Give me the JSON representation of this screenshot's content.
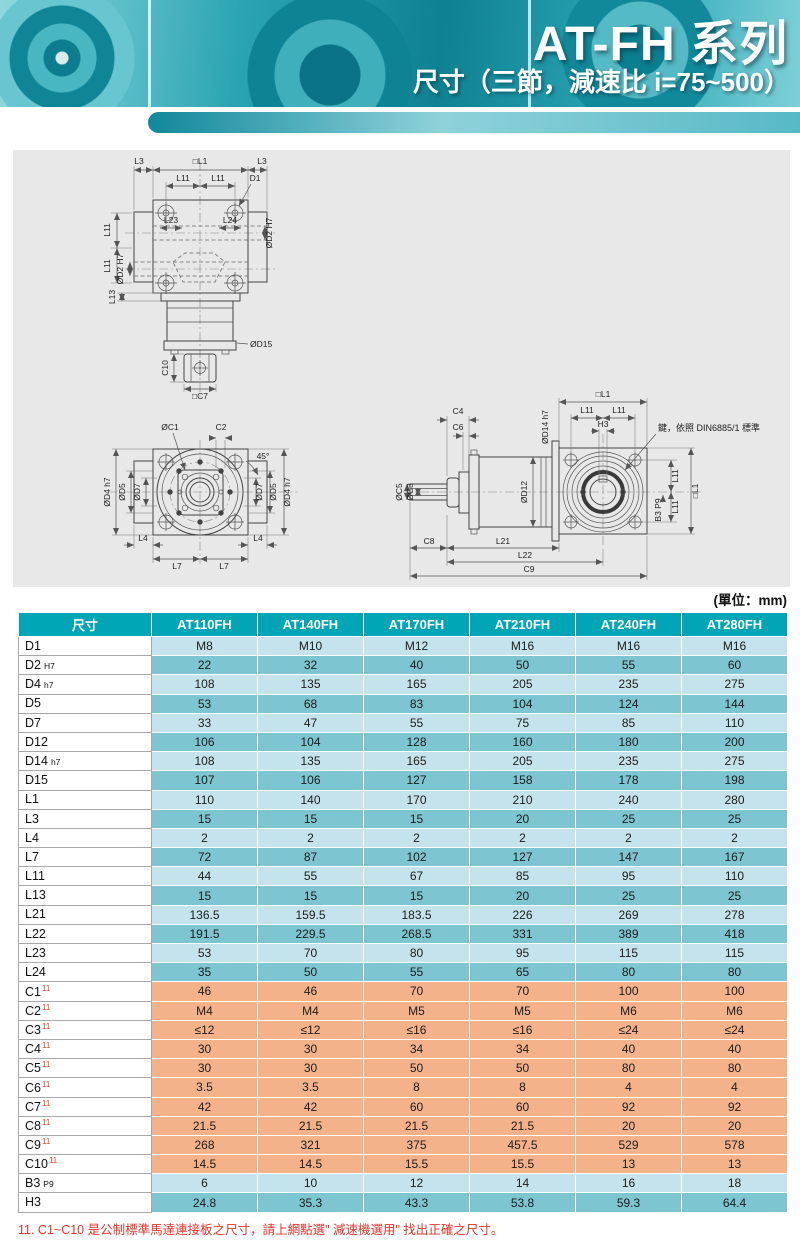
{
  "header": {
    "series_title": "AT-FH 系列",
    "subtitle": "尺寸（三節，減速比 i=75~500）"
  },
  "unit_note": "(單位：mm)",
  "footnote": "11. C1~C10 是公制標準馬達連接板之尺寸，請上網點選\" 減速機選用\" 找出正確之尺寸。",
  "colors": {
    "accent_teal": "#00a6b6",
    "row_light": "#c5e3ec",
    "row_dark": "#7cc5d1",
    "row_orange": "#f3b289",
    "note_red": "#e8332a"
  },
  "dims": {
    "L1sq": "□L1",
    "L3": "L3",
    "L11": "L11",
    "D1": "D1",
    "L23": "L23",
    "L24": "L24",
    "D2H7": "ØD2 H7",
    "L13": "L13",
    "D15": "ØD15",
    "C10": "C10",
    "C7sq": "□C7",
    "C1": "ØC1",
    "C2": "C2",
    "D4h7": "ØD4 h7",
    "D5": "ØD5",
    "D7": "ØD7",
    "deg45": "45°",
    "L4": "L4",
    "L7": "L7",
    "C4": "C4",
    "C6": "C6",
    "D14h7": "ØD14 h7",
    "D12": "ØD12",
    "C5": "ØC5",
    "C3": "ØC3",
    "C8": "C8",
    "L21": "L21",
    "L22": "L22",
    "C9": "C9",
    "H3": "H3",
    "B3P9": "B3 P9",
    "key_note": "鍵，依照 DIN6885/1 標準"
  },
  "table": {
    "header": [
      "尺寸",
      "AT110FH",
      "AT140FH",
      "AT170FH",
      "AT210FH",
      "AT240FH",
      "AT280FH"
    ],
    "rows": [
      {
        "label": "D1",
        "sub": "",
        "sup": "",
        "shade": "light",
        "values": [
          "M8",
          "M10",
          "M12",
          "M16",
          "M16",
          "M16"
        ]
      },
      {
        "label": "D2",
        "sub": "H7",
        "sup": "",
        "shade": "dark",
        "values": [
          "22",
          "32",
          "40",
          "50",
          "55",
          "60"
        ]
      },
      {
        "label": "D4",
        "sub": "h7",
        "sup": "",
        "shade": "light",
        "values": [
          "108",
          "135",
          "165",
          "205",
          "235",
          "275"
        ]
      },
      {
        "label": "D5",
        "sub": "",
        "sup": "",
        "shade": "dark",
        "values": [
          "53",
          "68",
          "83",
          "104",
          "124",
          "144"
        ]
      },
      {
        "label": "D7",
        "sub": "",
        "sup": "",
        "shade": "light",
        "values": [
          "33",
          "47",
          "55",
          "75",
          "85",
          "110"
        ]
      },
      {
        "label": "D12",
        "sub": "",
        "sup": "",
        "shade": "dark",
        "values": [
          "106",
          "104",
          "128",
          "160",
          "180",
          "200"
        ]
      },
      {
        "label": "D14",
        "sub": "h7",
        "sup": "",
        "shade": "light",
        "values": [
          "108",
          "135",
          "165",
          "205",
          "235",
          "275"
        ]
      },
      {
        "label": "D15",
        "sub": "",
        "sup": "",
        "shade": "dark",
        "values": [
          "107",
          "106",
          "127",
          "158",
          "178",
          "198"
        ]
      },
      {
        "label": "L1",
        "sub": "",
        "sup": "",
        "shade": "light",
        "values": [
          "110",
          "140",
          "170",
          "210",
          "240",
          "280"
        ]
      },
      {
        "label": "L3",
        "sub": "",
        "sup": "",
        "shade": "dark",
        "values": [
          "15",
          "15",
          "15",
          "20",
          "25",
          "25"
        ]
      },
      {
        "label": "L4",
        "sub": "",
        "sup": "",
        "shade": "light",
        "values": [
          "2",
          "2",
          "2",
          "2",
          "2",
          "2"
        ]
      },
      {
        "label": "L7",
        "sub": "",
        "sup": "",
        "shade": "dark",
        "values": [
          "72",
          "87",
          "102",
          "127",
          "147",
          "167"
        ]
      },
      {
        "label": "L11",
        "sub": "",
        "sup": "",
        "shade": "light",
        "values": [
          "44",
          "55",
          "67",
          "85",
          "95",
          "110"
        ]
      },
      {
        "label": "L13",
        "sub": "",
        "sup": "",
        "shade": "dark",
        "values": [
          "15",
          "15",
          "15",
          "20",
          "25",
          "25"
        ]
      },
      {
        "label": "L21",
        "sub": "",
        "sup": "",
        "shade": "light",
        "values": [
          "136.5",
          "159.5",
          "183.5",
          "226",
          "269",
          "278"
        ]
      },
      {
        "label": "L22",
        "sub": "",
        "sup": "",
        "shade": "dark",
        "values": [
          "191.5",
          "229.5",
          "268.5",
          "331",
          "389",
          "418"
        ]
      },
      {
        "label": "L23",
        "sub": "",
        "sup": "",
        "shade": "light",
        "values": [
          "53",
          "70",
          "80",
          "95",
          "115",
          "115"
        ]
      },
      {
        "label": "L24",
        "sub": "",
        "sup": "",
        "shade": "dark",
        "values": [
          "35",
          "50",
          "55",
          "65",
          "80",
          "80"
        ]
      },
      {
        "label": "C1",
        "sub": "",
        "sup": "11",
        "shade": "orange",
        "values": [
          "46",
          "46",
          "70",
          "70",
          "100",
          "100"
        ]
      },
      {
        "label": "C2",
        "sub": "",
        "sup": "11",
        "shade": "orange",
        "values": [
          "M4",
          "M4",
          "M5",
          "M5",
          "M6",
          "M6"
        ]
      },
      {
        "label": "C3",
        "sub": "",
        "sup": "11",
        "shade": "orange",
        "values": [
          "≤12",
          "≤12",
          "≤16",
          "≤16",
          "≤24",
          "≤24"
        ]
      },
      {
        "label": "C4",
        "sub": "",
        "sup": "11",
        "shade": "orange",
        "values": [
          "30",
          "30",
          "34",
          "34",
          "40",
          "40"
        ]
      },
      {
        "label": "C5",
        "sub": "",
        "sup": "11",
        "shade": "orange",
        "values": [
          "30",
          "30",
          "50",
          "50",
          "80",
          "80"
        ]
      },
      {
        "label": "C6",
        "sub": "",
        "sup": "11",
        "shade": "orange",
        "values": [
          "3.5",
          "3.5",
          "8",
          "8",
          "4",
          "4"
        ]
      },
      {
        "label": "C7",
        "sub": "",
        "sup": "11",
        "shade": "orange",
        "values": [
          "42",
          "42",
          "60",
          "60",
          "92",
          "92"
        ]
      },
      {
        "label": "C8",
        "sub": "",
        "sup": "11",
        "shade": "orange",
        "values": [
          "21.5",
          "21.5",
          "21.5",
          "21.5",
          "20",
          "20"
        ]
      },
      {
        "label": "C9",
        "sub": "",
        "sup": "11",
        "shade": "orange",
        "values": [
          "268",
          "321",
          "375",
          "457.5",
          "529",
          "578"
        ]
      },
      {
        "label": "C10",
        "sub": "",
        "sup": "11",
        "shade": "orange",
        "values": [
          "14.5",
          "14.5",
          "15.5",
          "15.5",
          "13",
          "13"
        ]
      },
      {
        "label": "B3",
        "sub": "P9",
        "sup": "",
        "shade": "light",
        "values": [
          "6",
          "10",
          "12",
          "14",
          "16",
          "18"
        ]
      },
      {
        "label": "H3",
        "sub": "",
        "sup": "",
        "shade": "dark",
        "values": [
          "24.8",
          "35.3",
          "43.3",
          "53.8",
          "59.3",
          "64.4"
        ]
      }
    ]
  }
}
